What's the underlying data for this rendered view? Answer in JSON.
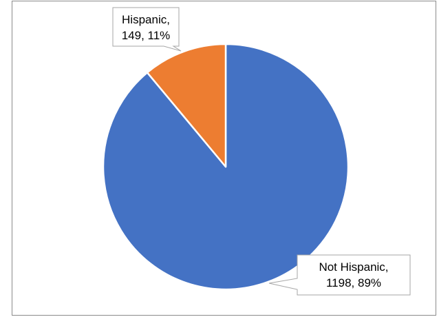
{
  "chart_data": {
    "type": "pie",
    "title": "",
    "categories": [
      "Not Hispanic",
      "Hispanic"
    ],
    "values": [
      1198,
      149
    ],
    "percents": [
      "89%",
      "11%"
    ],
    "colors": [
      "#4472c4",
      "#ed7d31"
    ],
    "data_labels": [
      {
        "line1": "Not Hispanic,",
        "line2": "1198, 89%"
      },
      {
        "line1": "Hispanic,",
        "line2": "149, 11%"
      }
    ],
    "legend": "none"
  }
}
